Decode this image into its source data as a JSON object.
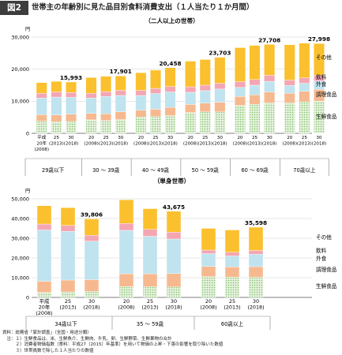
{
  "figure": {
    "label": "図2",
    "title": "世帯主の年齢別に見た品目別食料消費支出（１人当たり１か月間）"
  },
  "categories_legend": [
    "その他",
    "飲料",
    "外食",
    "調理食品",
    "生鮮食品"
  ],
  "colors": {
    "生鮮食品": "#c9e3bc",
    "調理食品": "#f6b98f",
    "外食": "#bfe3ef",
    "飲料": "#f4a6b3",
    "その他": "#fbc02d"
  },
  "chart_data": [
    {
      "type": "bar",
      "stacked": true,
      "title": "（二人以上の世帯）",
      "unit": "円",
      "ylim": [
        0,
        30000
      ],
      "yticks": [
        "0",
        "10,000",
        "20,000",
        "30,000"
      ],
      "grid": true,
      "year_labels": [
        [
          "平成",
          "20年",
          "(2008)"
        ],
        [
          "25",
          "(2013)"
        ],
        [
          "30",
          "(2018)"
        ],
        [
          "20",
          "(2008)"
        ],
        [
          "25",
          "(2013)"
        ],
        [
          "30",
          "(2018)"
        ],
        [
          "20",
          "(2008)"
        ],
        [
          "25",
          "(2013)"
        ],
        [
          "30",
          "(2018)"
        ],
        [
          "20",
          "(2008)"
        ],
        [
          "25",
          "(2013)"
        ],
        [
          "30",
          "(2018)"
        ],
        [
          "20",
          "(2008)"
        ],
        [
          "25",
          "(2013)"
        ],
        [
          "30",
          "(2018)"
        ],
        [
          "20",
          "(2008)"
        ],
        [
          "25",
          "(2013)"
        ],
        [
          "30",
          "(2018)"
        ]
      ],
      "groups": [
        "29歳以下",
        "30 ～ 39歳",
        "40 ～ 49歳",
        "50 ～ 59歳",
        "60 ～ 69歳",
        "70歳以上"
      ],
      "series": [
        {
          "name": "生鮮食品",
          "values": [
            3800,
            3600,
            3700,
            4200,
            4000,
            4300,
            5100,
            5200,
            5500,
            6500,
            6700,
            6700,
            8700,
            9000,
            9500,
            9500,
            9800,
            10000
          ]
        },
        {
          "name": "調理食品",
          "values": [
            2000,
            2100,
            2300,
            2000,
            2100,
            2400,
            2100,
            2300,
            2600,
            2500,
            2700,
            3000,
            2800,
            3000,
            3400,
            3000,
            3300,
            3700
          ]
        },
        {
          "name": "外食",
          "values": [
            5200,
            5600,
            5200,
            4800,
            5400,
            5100,
            4600,
            4900,
            4800,
            3800,
            3900,
            4100,
            2800,
            3000,
            3300,
            2400,
            2500,
            2600
          ]
        },
        {
          "name": "飲料",
          "values": [
            1500,
            1600,
            1500,
            1500,
            1500,
            1600,
            1600,
            1600,
            1700,
            1700,
            1700,
            1800,
            1800,
            1800,
            1900,
            1700,
            1700,
            1800
          ]
        },
        {
          "name": "その他",
          "values": [
            3300,
            3300,
            3293,
            4900,
            4800,
            4501,
            5500,
            5700,
            5858,
            8000,
            8000,
            8103,
            10600,
            10600,
            9608,
            11000,
            10800,
            9898
          ]
        }
      ],
      "totals": [
        null,
        null,
        "15,993",
        null,
        null,
        "17,901",
        null,
        null,
        "20,458",
        null,
        null,
        "23,703",
        null,
        null,
        "27,708",
        null,
        null,
        "27,998"
      ]
    },
    {
      "type": "bar",
      "stacked": true,
      "title": "（単身世帯）",
      "unit": "円",
      "ylim": [
        0,
        50000
      ],
      "yticks": [
        "0",
        "10,000",
        "20,000",
        "30,000",
        "40,000",
        "50,000"
      ],
      "grid": true,
      "year_labels": [
        [
          "平成",
          "20年",
          "(2008)"
        ],
        [
          "25",
          "(2013)"
        ],
        [
          "30",
          "(2018)"
        ],
        [
          "20",
          "(2008)"
        ],
        [
          "25",
          "(2013)"
        ],
        [
          "30",
          "(2018)"
        ],
        [
          "20",
          "(2008)"
        ],
        [
          "25",
          "(2013)"
        ],
        [
          "30",
          "(2018)"
        ]
      ],
      "groups": [
        "34歳以下",
        "35 ～ 59歳",
        "60歳以上"
      ],
      "series": [
        {
          "name": "生鮮食品",
          "values": [
            2500,
            2800,
            3000,
            5500,
            5400,
            5300,
            10500,
            10300,
            10200
          ]
        },
        {
          "name": "調理食品",
          "values": [
            5700,
            6000,
            6000,
            6500,
            6600,
            6800,
            5200,
            5200,
            5400
          ]
        },
        {
          "name": "外食",
          "values": [
            26000,
            24700,
            19500,
            22000,
            19000,
            17500,
            6500,
            5500,
            6300
          ]
        },
        {
          "name": "飲料",
          "values": [
            3000,
            3000,
            3000,
            3500,
            3500,
            3500,
            1800,
            1900,
            1900
          ]
        },
        {
          "name": "その他",
          "values": [
            9300,
            9000,
            8306,
            12000,
            10500,
            10575,
            11000,
            11300,
            11798
          ]
        }
      ],
      "totals": [
        null,
        null,
        "39,806",
        null,
        null,
        "43,675",
        null,
        null,
        "35,598"
      ]
    }
  ],
  "notes": [
    "資料：総務省「家計調査」（全国・用途分類）",
    "　注：１）生鮮食品は、米、生鮮魚介、生鮮肉、牛乳、卵、生鮮野菜、生鮮果物の合計",
    "　　　２）消費者物価指数（食料：平成27（2015）年基準）を用いて物価の上昇・下落の影響を取り除いた数値",
    "　　　３）世帯員数で除した１人当たりの数値"
  ]
}
